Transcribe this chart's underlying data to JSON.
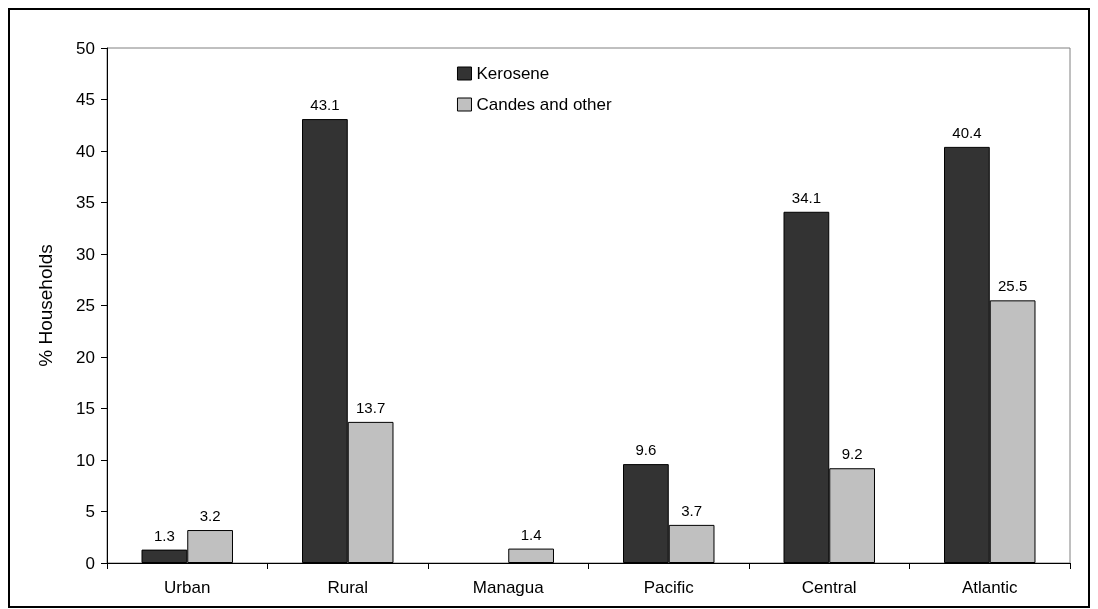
{
  "chart_data": {
    "type": "bar",
    "ylabel": "% Households",
    "categories": [
      "Urban",
      "Rural",
      "Managua",
      "Pacific",
      "Central",
      "Atlantic"
    ],
    "series": [
      {
        "name": "Kerosene",
        "color": "#333333",
        "values": [
          1.3,
          43.1,
          null,
          9.6,
          34.1,
          40.4
        ]
      },
      {
        "name": "Candes and other",
        "color": "#c0c0c0",
        "values": [
          3.2,
          13.7,
          1.4,
          3.7,
          9.2,
          25.5
        ]
      }
    ],
    "ylim": [
      0,
      50
    ],
    "yticks": [
      0,
      5,
      10,
      15,
      20,
      25,
      30,
      35,
      40,
      45,
      50
    ],
    "data_labels": true,
    "legend": "top",
    "grid": false
  }
}
